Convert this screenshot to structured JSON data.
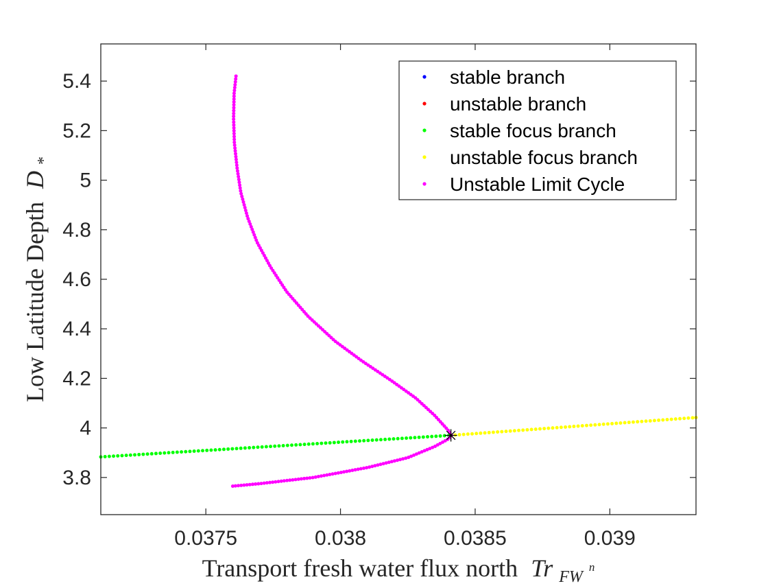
{
  "chart_data": {
    "type": "scatter",
    "xlabel": "Transport fresh water flux north",
    "xlabel_math": "Tr",
    "xlabel_sub": "FW",
    "xlabel_sup": "n",
    "ylabel": "Low Latitude Depth",
    "ylabel_math": "D",
    "ylabel_sub": "*",
    "xlim": [
      0.03711,
      0.03932
    ],
    "ylim": [
      3.65,
      5.55
    ],
    "x_ticks": [
      0.0375,
      0.038,
      0.0385,
      0.039
    ],
    "x_tick_labels": [
      "0.0375",
      "0.038",
      "0.0385",
      "0.039"
    ],
    "y_ticks": [
      3.8,
      4.0,
      4.2,
      4.4,
      4.6,
      4.8,
      5.0,
      5.2,
      5.4
    ],
    "y_tick_labels": [
      "3.8",
      "4",
      "4.2",
      "4.4",
      "4.6",
      "4.8",
      "5",
      "5.2",
      "5.4"
    ],
    "grid": false,
    "legend_position": "top-right",
    "series": [
      {
        "name": "stable branch",
        "color": "#0000ff",
        "points": []
      },
      {
        "name": "unstable branch",
        "color": "#ff0000",
        "points": []
      },
      {
        "name": "stable focus branch",
        "color": "#00ff00",
        "points": [
          [
            0.03711,
            3.883
          ],
          [
            0.03841,
            3.97
          ]
        ]
      },
      {
        "name": "unstable focus branch",
        "color": "#ffff00",
        "points": [
          [
            0.03841,
            3.97
          ],
          [
            0.03932,
            4.042
          ]
        ]
      },
      {
        "name": "Unstable Limit Cycle",
        "color": "#ff00ff",
        "points": [
          [
            0.037612,
            5.42
          ],
          [
            0.037605,
            5.35
          ],
          [
            0.037603,
            5.25
          ],
          [
            0.037606,
            5.15
          ],
          [
            0.037616,
            5.05
          ],
          [
            0.03763,
            4.95
          ],
          [
            0.037655,
            4.85
          ],
          [
            0.03769,
            4.75
          ],
          [
            0.03774,
            4.65
          ],
          [
            0.0378,
            4.55
          ],
          [
            0.03788,
            4.45
          ],
          [
            0.03798,
            4.35
          ],
          [
            0.03808,
            4.27
          ],
          [
            0.03819,
            4.19
          ],
          [
            0.03828,
            4.12
          ],
          [
            0.03835,
            4.05
          ],
          [
            0.0384,
            3.99
          ],
          [
            0.038412,
            3.97
          ],
          [
            0.0384,
            3.955
          ],
          [
            0.03835,
            3.925
          ],
          [
            0.03825,
            3.88
          ],
          [
            0.0381,
            3.84
          ],
          [
            0.0379,
            3.8
          ],
          [
            0.0377,
            3.775
          ],
          [
            0.0376,
            3.765
          ]
        ]
      }
    ],
    "marker_star": [
      0.03841,
      3.97
    ]
  }
}
